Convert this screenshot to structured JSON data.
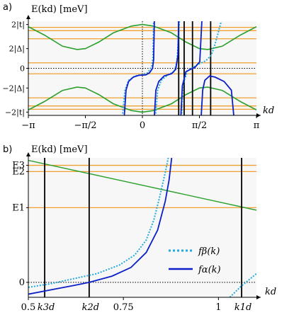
{
  "colors": {
    "green": "#2ca02c",
    "orange": "#f0a030",
    "blue": "#0c1fc8",
    "cyan": "#22aadd",
    "black": "#000000",
    "bg": "#f7f7f7"
  },
  "chart_data": [
    {
      "type": "line",
      "panel_label": "a)",
      "ylabel": "E(kd) [meV]",
      "xlabel": "kd",
      "xlim": [
        -3.1416,
        3.1416
      ],
      "ylim": [
        -2.15,
        2.15
      ],
      "x_ticks": [
        {
          "value": -3.1416,
          "label": "−π"
        },
        {
          "value": -1.5708,
          "label": "−π/2"
        },
        {
          "value": 0,
          "label": "0"
        },
        {
          "value": 1.5708,
          "label": "π/2"
        },
        {
          "value": 3.1416,
          "label": "π"
        }
      ],
      "y_ticks": [
        {
          "value": 2,
          "label": "2|t|"
        },
        {
          "value": 0.9,
          "label": "2|Δ|"
        },
        {
          "value": 0,
          "label": "0"
        },
        {
          "value": -0.9,
          "label": "−2|Δ|"
        },
        {
          "value": -2,
          "label": "−2|t|"
        }
      ],
      "zero_line": 0,
      "origin_line_x": 0,
      "orange_levels": [
        1.87,
        1.72,
        1.35,
        0.25,
        -0.25,
        -1.35,
        -1.72,
        -1.87
      ],
      "green_bands": [
        {
          "name": "upper",
          "points": [
            [
              -3.1416,
              1.9
            ],
            [
              -2.7,
              1.52
            ],
            [
              -2.2,
              1.01
            ],
            [
              -1.8,
              0.86
            ],
            [
              -1.5708,
              0.9
            ],
            [
              -1.2,
              1.2
            ],
            [
              -0.8,
              1.62
            ],
            [
              -0.3,
              1.93
            ],
            [
              0,
              2
            ],
            [
              0.3,
              1.93
            ],
            [
              0.8,
              1.62
            ],
            [
              1.2,
              1.2
            ],
            [
              1.5708,
              0.9
            ],
            [
              1.8,
              0.86
            ],
            [
              2.2,
              1.01
            ],
            [
              2.7,
              1.52
            ],
            [
              3.1416,
              1.9
            ]
          ]
        },
        {
          "name": "lower",
          "points": [
            [
              -3.1416,
              -1.9
            ],
            [
              -2.7,
              -1.52
            ],
            [
              -2.2,
              -1.01
            ],
            [
              -1.8,
              -0.86
            ],
            [
              -1.5708,
              -0.9
            ],
            [
              -1.2,
              -1.2
            ],
            [
              -0.8,
              -1.62
            ],
            [
              -0.3,
              -1.93
            ],
            [
              0,
              -2
            ],
            [
              0.3,
              -1.93
            ],
            [
              0.8,
              -1.62
            ],
            [
              1.2,
              -1.2
            ],
            [
              1.5708,
              -0.9
            ],
            [
              1.8,
              -0.86
            ],
            [
              2.2,
              -1.01
            ],
            [
              2.7,
              -1.52
            ],
            [
              3.1416,
              -1.9
            ]
          ]
        }
      ],
      "vertical_lines": [
        1.0,
        1.15,
        1.38,
        1.88
      ],
      "f_alpha_segments": [
        [
          [
            -0.5,
            -2.2
          ],
          [
            -0.45,
            -1.0
          ],
          [
            -0.38,
            -0.6
          ],
          [
            -0.25,
            -0.4
          ],
          [
            -0.1,
            -0.32
          ],
          [
            0.1,
            -0.3
          ],
          [
            0.2,
            -0.2
          ],
          [
            0.28,
            0.0
          ],
          [
            0.31,
            0.4
          ],
          [
            0.33,
            2.2
          ]
        ],
        [
          [
            0.33,
            -2.2
          ],
          [
            0.37,
            -1.0
          ],
          [
            0.45,
            -0.6
          ],
          [
            0.6,
            -0.35
          ],
          [
            0.8,
            -0.25
          ],
          [
            0.92,
            -0.05
          ],
          [
            0.98,
            0.6
          ],
          [
            1.0,
            2.2
          ]
        ],
        [
          [
            1.06,
            -2.2
          ],
          [
            1.1,
            -0.8
          ],
          [
            1.2,
            -0.15
          ],
          [
            1.45,
            0.05
          ],
          [
            1.58,
            0.3
          ],
          [
            1.64,
            2.2
          ]
        ],
        [
          [
            1.62,
            -2.2
          ],
          [
            1.66,
            -1.0
          ],
          [
            1.72,
            -0.55
          ],
          [
            1.85,
            -0.35
          ],
          [
            2.0,
            -0.4
          ],
          [
            2.25,
            -0.6
          ],
          [
            2.45,
            -1.0
          ],
          [
            2.52,
            -2.2
          ]
        ]
      ],
      "f_beta_segments": [
        [
          [
            -0.55,
            -2.2
          ],
          [
            -0.48,
            -1.0
          ],
          [
            -0.38,
            -0.55
          ],
          [
            -0.2,
            -0.35
          ],
          [
            0,
            -0.28
          ],
          [
            0.15,
            -0.2
          ],
          [
            0.26,
            0.1
          ],
          [
            0.29,
            0.5
          ],
          [
            0.31,
            2.2
          ]
        ],
        [
          [
            0.36,
            -2.2
          ],
          [
            0.42,
            -1.0
          ],
          [
            0.52,
            -0.55
          ],
          [
            0.7,
            -0.3
          ],
          [
            0.88,
            -0.15
          ],
          [
            0.95,
            0.3
          ],
          [
            0.98,
            1.0
          ],
          [
            1.02,
            2.2
          ]
        ],
        [
          [
            1.08,
            -2.2
          ],
          [
            1.12,
            -0.7
          ],
          [
            1.25,
            -0.1
          ],
          [
            1.5,
            0.15
          ],
          [
            1.75,
            0.35
          ],
          [
            1.9,
            0.6
          ],
          [
            2.0,
            1.1
          ],
          [
            2.1,
            1.7
          ],
          [
            2.18,
            2.2
          ]
        ]
      ]
    },
    {
      "type": "line",
      "panel_label": "b)",
      "ylabel": "E(kd) [meV]",
      "xlabel": "kd",
      "xlim": [
        0.5,
        1.1
      ],
      "ylim": [
        -0.12,
        1.0
      ],
      "x_ticks": [
        {
          "value": 0.5,
          "label": "0.5"
        },
        {
          "value": 0.75,
          "label": "0.75"
        },
        {
          "value": 1.0,
          "label": "1"
        }
      ],
      "y_ticks": [
        {
          "value": 0.94,
          "label": "E3"
        },
        {
          "value": 0.89,
          "label": "E2"
        },
        {
          "value": 0.6,
          "label": "E1"
        },
        {
          "value": 0,
          "label": "0"
        }
      ],
      "special_x": [
        {
          "value": 0.543,
          "label": "k3d"
        },
        {
          "value": 0.66,
          "label": "k2d"
        },
        {
          "value": 1.061,
          "label": "k1d"
        }
      ],
      "orange_levels": [
        0.94,
        0.89,
        0.6
      ],
      "zero_line": 0,
      "green_line": [
        [
          0.5,
          0.98
        ],
        [
          1.1,
          0.58
        ]
      ],
      "series": [
        {
          "name": "fβ(k)",
          "style": "dotted",
          "segments": [
            [
              [
                0.5,
                -0.04
              ],
              [
                0.56,
                -0.01
              ],
              [
                0.62,
                0.03
              ],
              [
                0.68,
                0.07
              ],
              [
                0.74,
                0.14
              ],
              [
                0.78,
                0.22
              ],
              [
                0.81,
                0.34
              ],
              [
                0.83,
                0.5
              ],
              [
                0.845,
                0.68
              ],
              [
                0.86,
                0.88
              ],
              [
                0.868,
                1.0
              ]
            ],
            [
              [
                1.03,
                -0.12
              ],
              [
                1.06,
                -0.03
              ],
              [
                1.08,
                0.02
              ],
              [
                1.1,
                0.07
              ]
            ]
          ]
        },
        {
          "name": "fα(k)",
          "style": "solid",
          "segments": [
            [
              [
                0.5,
                -0.095
              ],
              [
                0.56,
                -0.06
              ],
              [
                0.62,
                -0.025
              ],
              [
                0.66,
                0.0
              ],
              [
                0.72,
                0.05
              ],
              [
                0.77,
                0.12
              ],
              [
                0.81,
                0.24
              ],
              [
                0.84,
                0.42
              ],
              [
                0.86,
                0.65
              ],
              [
                0.87,
                0.82
              ],
              [
                0.877,
                1.0
              ]
            ]
          ]
        }
      ],
      "legend": {
        "placement": "right-middle"
      }
    }
  ]
}
